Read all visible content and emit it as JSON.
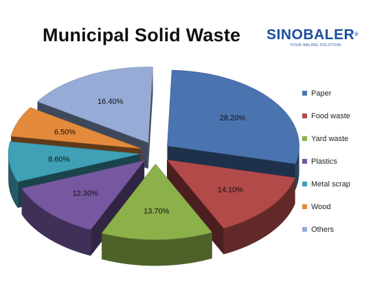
{
  "chart_data": {
    "type": "pie",
    "style": "3d-exploded",
    "title": "Municipal Solid Waste",
    "slices": [
      {
        "name": "Paper",
        "value": 28.2,
        "label": "28.20%",
        "color": "#4a74b0"
      },
      {
        "name": "Food waste",
        "value": 14.1,
        "label": "14.10%",
        "color": "#b24a4a"
      },
      {
        "name": "Yard waste",
        "value": 13.7,
        "label": "13.70%",
        "color": "#8cb04a"
      },
      {
        "name": "Plastics",
        "value": 12.3,
        "label": "12.30%",
        "color": "#7558a0"
      },
      {
        "name": "Metal scrap",
        "value": 8.6,
        "label": "8.60%",
        "color": "#3fa0b6"
      },
      {
        "name": "Wood",
        "value": 6.5,
        "label": "6.50%",
        "color": "#e48a3c"
      },
      {
        "name": "Others",
        "value": 16.4,
        "label": "16.40%",
        "color": "#96acd6"
      }
    ],
    "legend_position": "right"
  },
  "logo": {
    "text": "SINOBALER",
    "registered_mark": "®",
    "tagline": "YOUR BALING SOLUTION",
    "color": "#1d4fa0"
  }
}
